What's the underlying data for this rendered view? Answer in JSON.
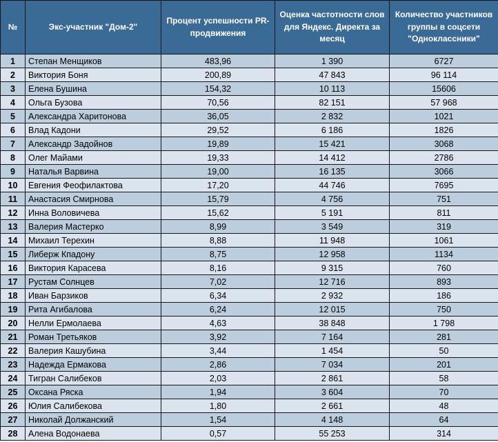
{
  "styles": {
    "header_bg": "#3a6a96",
    "header_text": "#ffffff",
    "row_odd": "#bccede",
    "row_even": "#dae3ee",
    "border": "#141414"
  },
  "chart_data": {
    "type": "table",
    "title": "",
    "columns": [
      "№",
      "Экс-участник \"Дом-2\"",
      "Процент успешности PR-продвижения",
      "Оценка частотности слов для Яндекс. Директа за месяц",
      "Количество участников группы в соцсети \"Одноклассники\""
    ],
    "rows": [
      [
        "1",
        "Степан Менщиков",
        "483,96",
        "1 390",
        "6727"
      ],
      [
        "2",
        "Виктория Боня",
        "200,89",
        "47 843",
        "96 114"
      ],
      [
        "3",
        "Елена Бушина",
        "154,32",
        "10 113",
        "15606"
      ],
      [
        "4",
        "Ольга Бузова",
        "70,56",
        "82 151",
        "57 968"
      ],
      [
        "5",
        "Александра Харитонова",
        "36,05",
        "2 832",
        "1021"
      ],
      [
        "6",
        "Влад Кадони",
        "29,52",
        "6 186",
        "1826"
      ],
      [
        "7",
        "Александр Задойнов",
        "19,89",
        "15 421",
        "3068"
      ],
      [
        "8",
        "Олег Майами",
        "19,33",
        "14 412",
        "2786"
      ],
      [
        "9",
        "Наталья Варвина",
        "19,00",
        "16 135",
        "3066"
      ],
      [
        "10",
        "Евгения Феофилактова",
        "17,20",
        "44 746",
        "7695"
      ],
      [
        "11",
        "Анастасия Смирнова",
        "15,79",
        "4 756",
        "751"
      ],
      [
        "12",
        "Инна Воловичева",
        "15,62",
        "5 191",
        "811"
      ],
      [
        "13",
        "Валерия Мастерко",
        "8,99",
        "3 549",
        "319"
      ],
      [
        "14",
        "Михаил Терехин",
        "8,88",
        "11 948",
        "1061"
      ],
      [
        "15",
        "Либерж Кпадону",
        "8,75",
        "12 958",
        "1134"
      ],
      [
        "16",
        "Виктория Карасева",
        "8,16",
        "9 315",
        "760"
      ],
      [
        "17",
        "Рустам Солнцев",
        "7,02",
        "12 716",
        "893"
      ],
      [
        "18",
        "Иван Барзиков",
        "6,34",
        "2 932",
        "186"
      ],
      [
        "19",
        "Рита Агибалова",
        "6,24",
        "12 015",
        "750"
      ],
      [
        "20",
        "Нелли Ермолаева",
        "4,63",
        "38 848",
        "1 798"
      ],
      [
        "21",
        "Роман Третьяков",
        "3,92",
        "7 164",
        "281"
      ],
      [
        "22",
        "Валерия Кашубина",
        "3,44",
        "1 454",
        "50"
      ],
      [
        "23",
        "Надежда Ермакова",
        "2,86",
        "7 034",
        "201"
      ],
      [
        "24",
        "Тигран Салибеков",
        "2,03",
        "2 861",
        "58"
      ],
      [
        "25",
        "Оксана Ряска",
        "1,94",
        "3 604",
        "70"
      ],
      [
        "26",
        "Юлия Салибекова",
        "1,80",
        "2 661",
        "48"
      ],
      [
        "27",
        "Николай Должанский",
        "1,54",
        "4 148",
        "64"
      ],
      [
        "28",
        "Алена Водонаева",
        "0,57",
        "55 253",
        "314"
      ]
    ]
  }
}
